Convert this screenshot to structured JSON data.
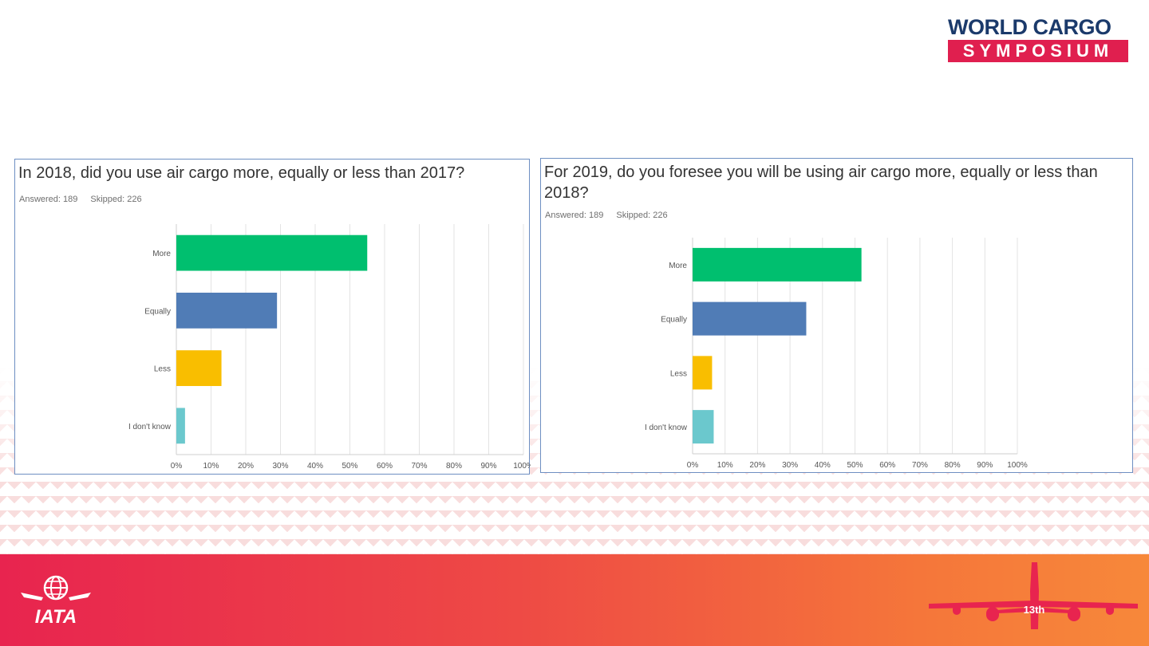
{
  "brand": {
    "line1": "WORLD CARGO",
    "line2": "SYMPOSIUM"
  },
  "footer": {
    "logo_text": "IATA",
    "badge": "13th"
  },
  "colors": {
    "more": "#00bf6f",
    "equally": "#507cb6",
    "less": "#f9be00",
    "dont_know": "#6bc8cd",
    "footer_start": "#e8244f",
    "footer_end": "#f7883a"
  },
  "panels": [
    {
      "title": "In 2018, did you use air cargo more, equally or less than 2017?",
      "answered": "Answered: 189",
      "skipped": "Skipped: 226"
    },
    {
      "title": "For 2019, do you foresee you will be using air cargo more, equally or less than 2018?",
      "answered": "Answered: 189",
      "skipped": "Skipped: 226"
    }
  ],
  "chart_data": [
    {
      "type": "bar",
      "orientation": "horizontal",
      "title": "In 2018, did you use air cargo more, equally or less than 2017?",
      "categories": [
        "More",
        "Equally",
        "Less",
        "I don't know"
      ],
      "values": [
        55,
        29,
        13,
        2.5
      ],
      "xlim": [
        0,
        100
      ],
      "ticks": [
        "0%",
        "10%",
        "20%",
        "30%",
        "40%",
        "50%",
        "60%",
        "70%",
        "80%",
        "90%",
        "100%"
      ],
      "grid": true
    },
    {
      "type": "bar",
      "orientation": "horizontal",
      "title": "For 2019, do you foresee you will be using air cargo more, equally or less than 2018?",
      "categories": [
        "More",
        "Equally",
        "Less",
        "I don't know"
      ],
      "values": [
        52,
        35,
        6,
        6.5
      ],
      "xlim": [
        0,
        100
      ],
      "ticks": [
        "0%",
        "10%",
        "20%",
        "30%",
        "40%",
        "50%",
        "60%",
        "70%",
        "80%",
        "90%",
        "100%"
      ],
      "grid": true
    }
  ]
}
